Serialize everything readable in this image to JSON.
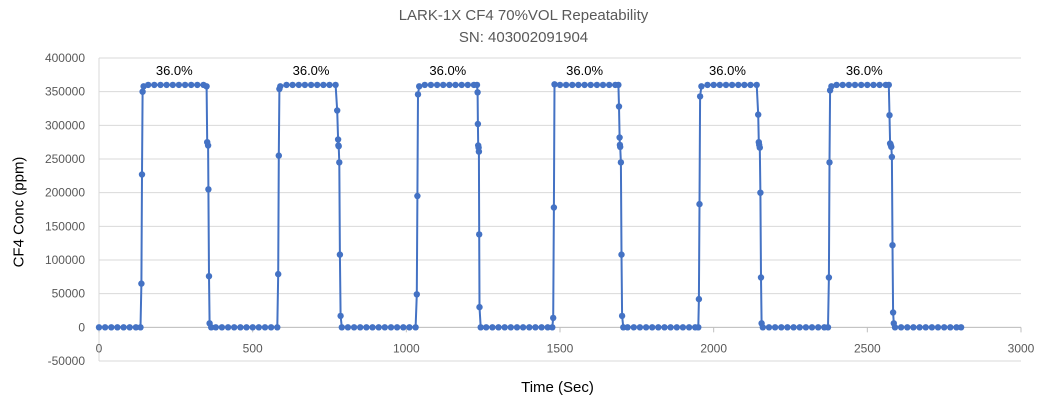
{
  "colors": {
    "series": "#4472C4",
    "grid": "#D9D9D9",
    "axis_text": "#595959"
  },
  "chart_data": {
    "type": "scatter",
    "title": "LARK-1X CF4 70%VOL Repeatability",
    "subtitle": "SN: 403002091904",
    "xlabel": "Time (Sec)",
    "ylabel": "CF4 Conc (ppm)",
    "xlim": [
      0,
      3000
    ],
    "ylim": [
      -50000,
      400000
    ],
    "x_ticks": [
      0,
      500,
      1000,
      1500,
      2000,
      2500,
      3000
    ],
    "y_ticks": [
      -50000,
      0,
      50000,
      100000,
      150000,
      200000,
      250000,
      300000,
      350000,
      400000
    ],
    "grid": "horizontal",
    "legend": "none",
    "series": [
      {
        "marker": "circle",
        "line": true,
        "points": [
          [
            0,
            0
          ],
          [
            20,
            0
          ],
          [
            40,
            0
          ],
          [
            60,
            0
          ],
          [
            80,
            0
          ],
          [
            100,
            0
          ],
          [
            120,
            0
          ],
          [
            135,
            0
          ],
          [
            138,
            65000
          ],
          [
            140,
            227000
          ],
          [
            142,
            350000
          ],
          [
            145,
            358000
          ],
          [
            160,
            360000
          ],
          [
            180,
            360000
          ],
          [
            200,
            360000
          ],
          [
            220,
            360000
          ],
          [
            240,
            360000
          ],
          [
            260,
            360000
          ],
          [
            280,
            360000
          ],
          [
            300,
            360000
          ],
          [
            320,
            360000
          ],
          [
            340,
            360000
          ],
          [
            350,
            358000
          ],
          [
            352,
            275000
          ],
          [
            355,
            270000
          ],
          [
            356,
            205000
          ],
          [
            358,
            76000
          ],
          [
            360,
            6000
          ],
          [
            365,
            0
          ],
          [
            380,
            0
          ],
          [
            400,
            0
          ],
          [
            420,
            0
          ],
          [
            440,
            0
          ],
          [
            460,
            0
          ],
          [
            480,
            0
          ],
          [
            500,
            0
          ],
          [
            520,
            0
          ],
          [
            540,
            0
          ],
          [
            560,
            0
          ],
          [
            580,
            0
          ],
          [
            583,
            79000
          ],
          [
            585,
            255000
          ],
          [
            587,
            354000
          ],
          [
            590,
            358000
          ],
          [
            610,
            360000
          ],
          [
            630,
            360000
          ],
          [
            650,
            360000
          ],
          [
            670,
            360000
          ],
          [
            690,
            360000
          ],
          [
            710,
            360000
          ],
          [
            730,
            360000
          ],
          [
            750,
            360000
          ],
          [
            770,
            360000
          ],
          [
            775,
            322000
          ],
          [
            778,
            279000
          ],
          [
            779,
            270000
          ],
          [
            780,
            269000
          ],
          [
            782,
            245000
          ],
          [
            784,
            108000
          ],
          [
            786,
            17000
          ],
          [
            790,
            0
          ],
          [
            810,
            0
          ],
          [
            830,
            0
          ],
          [
            850,
            0
          ],
          [
            870,
            0
          ],
          [
            890,
            0
          ],
          [
            910,
            0
          ],
          [
            930,
            0
          ],
          [
            950,
            0
          ],
          [
            970,
            0
          ],
          [
            990,
            0
          ],
          [
            1010,
            0
          ],
          [
            1030,
            0
          ],
          [
            1034,
            49000
          ],
          [
            1036,
            195000
          ],
          [
            1038,
            346000
          ],
          [
            1042,
            358000
          ],
          [
            1060,
            360000
          ],
          [
            1080,
            360000
          ],
          [
            1100,
            360000
          ],
          [
            1120,
            360000
          ],
          [
            1140,
            360000
          ],
          [
            1160,
            360000
          ],
          [
            1180,
            360000
          ],
          [
            1200,
            360000
          ],
          [
            1220,
            360000
          ],
          [
            1230,
            360000
          ],
          [
            1232,
            349000
          ],
          [
            1233,
            302000
          ],
          [
            1234,
            270000
          ],
          [
            1235,
            267000
          ],
          [
            1236,
            261000
          ],
          [
            1237,
            138000
          ],
          [
            1238,
            30000
          ],
          [
            1242,
            0
          ],
          [
            1260,
            0
          ],
          [
            1280,
            0
          ],
          [
            1300,
            0
          ],
          [
            1320,
            0
          ],
          [
            1340,
            0
          ],
          [
            1360,
            0
          ],
          [
            1380,
            0
          ],
          [
            1400,
            0
          ],
          [
            1420,
            0
          ],
          [
            1440,
            0
          ],
          [
            1460,
            0
          ],
          [
            1475,
            0
          ],
          [
            1478,
            14000
          ],
          [
            1480,
            178000
          ],
          [
            1482,
            361000
          ],
          [
            1500,
            360000
          ],
          [
            1520,
            360000
          ],
          [
            1540,
            360000
          ],
          [
            1560,
            360000
          ],
          [
            1580,
            360000
          ],
          [
            1600,
            360000
          ],
          [
            1620,
            360000
          ],
          [
            1640,
            360000
          ],
          [
            1660,
            360000
          ],
          [
            1680,
            360000
          ],
          [
            1690,
            360000
          ],
          [
            1692,
            328000
          ],
          [
            1694,
            282000
          ],
          [
            1695,
            271000
          ],
          [
            1696,
            268000
          ],
          [
            1698,
            245000
          ],
          [
            1700,
            108000
          ],
          [
            1702,
            17000
          ],
          [
            1706,
            0
          ],
          [
            1720,
            0
          ],
          [
            1740,
            0
          ],
          [
            1760,
            0
          ],
          [
            1780,
            0
          ],
          [
            1800,
            0
          ],
          [
            1820,
            0
          ],
          [
            1840,
            0
          ],
          [
            1860,
            0
          ],
          [
            1880,
            0
          ],
          [
            1900,
            0
          ],
          [
            1920,
            0
          ],
          [
            1940,
            0
          ],
          [
            1950,
            0
          ],
          [
            1952,
            42000
          ],
          [
            1954,
            183000
          ],
          [
            1956,
            343000
          ],
          [
            1960,
            358000
          ],
          [
            1980,
            360000
          ],
          [
            2000,
            360000
          ],
          [
            2020,
            360000
          ],
          [
            2040,
            360000
          ],
          [
            2060,
            360000
          ],
          [
            2080,
            360000
          ],
          [
            2100,
            360000
          ],
          [
            2120,
            360000
          ],
          [
            2140,
            360000
          ],
          [
            2145,
            316000
          ],
          [
            2147,
            275000
          ],
          [
            2148,
            271000
          ],
          [
            2150,
            267000
          ],
          [
            2152,
            200000
          ],
          [
            2154,
            74000
          ],
          [
            2156,
            6000
          ],
          [
            2160,
            0
          ],
          [
            2180,
            0
          ],
          [
            2200,
            0
          ],
          [
            2220,
            0
          ],
          [
            2240,
            0
          ],
          [
            2260,
            0
          ],
          [
            2280,
            0
          ],
          [
            2300,
            0
          ],
          [
            2320,
            0
          ],
          [
            2340,
            0
          ],
          [
            2360,
            0
          ],
          [
            2372,
            0
          ],
          [
            2375,
            74000
          ],
          [
            2377,
            245000
          ],
          [
            2379,
            352000
          ],
          [
            2383,
            358000
          ],
          [
            2400,
            360000
          ],
          [
            2420,
            360000
          ],
          [
            2440,
            360000
          ],
          [
            2460,
            360000
          ],
          [
            2480,
            360000
          ],
          [
            2500,
            360000
          ],
          [
            2520,
            360000
          ],
          [
            2540,
            360000
          ],
          [
            2560,
            360000
          ],
          [
            2570,
            360000
          ],
          [
            2572,
            315000
          ],
          [
            2574,
            273000
          ],
          [
            2576,
            271000
          ],
          [
            2578,
            268000
          ],
          [
            2580,
            253000
          ],
          [
            2582,
            122000
          ],
          [
            2584,
            22000
          ],
          [
            2586,
            6000
          ],
          [
            2590,
            0
          ],
          [
            2610,
            0
          ],
          [
            2630,
            0
          ],
          [
            2650,
            0
          ],
          [
            2670,
            0
          ],
          [
            2690,
            0
          ],
          [
            2710,
            0
          ],
          [
            2730,
            0
          ],
          [
            2750,
            0
          ],
          [
            2770,
            0
          ],
          [
            2790,
            0
          ],
          [
            2805,
            0
          ]
        ]
      }
    ],
    "annotations": [
      {
        "text": "36.0%",
        "x": 245,
        "y": 360000
      },
      {
        "text": "36.0%",
        "x": 690,
        "y": 360000
      },
      {
        "text": "36.0%",
        "x": 1135,
        "y": 360000
      },
      {
        "text": "36.0%",
        "x": 1580,
        "y": 360000
      },
      {
        "text": "36.0%",
        "x": 2045,
        "y": 360000
      },
      {
        "text": "36.0%",
        "x": 2490,
        "y": 360000
      }
    ]
  }
}
